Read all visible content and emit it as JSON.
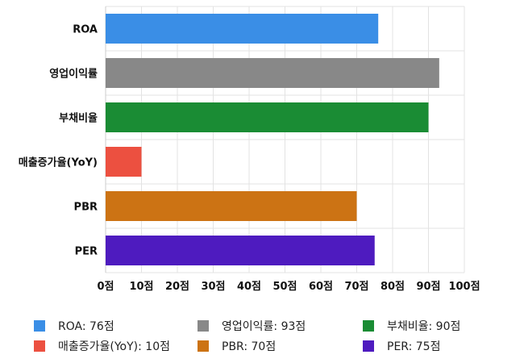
{
  "chart_data": {
    "type": "bar",
    "orientation": "horizontal",
    "categories": [
      "ROA",
      "영업이익률",
      "부채비율",
      "매출증가율(YoY)",
      "PBR",
      "PER"
    ],
    "values": [
      76,
      93,
      90,
      10,
      70,
      75
    ],
    "colors": [
      "#3a8ee6",
      "#888888",
      "#1a8c34",
      "#ec5040",
      "#cc7314",
      "#4e1bbf"
    ],
    "xlim": [
      0,
      100
    ],
    "xticks": [
      0,
      10,
      20,
      30,
      40,
      50,
      60,
      70,
      80,
      90,
      100
    ],
    "tick_suffix": "점",
    "grid": true,
    "legend_placement": "bottom",
    "legend": [
      "ROA: 76점",
      "영업이익률: 93점",
      "부채비율: 90점",
      "매출증가율(YoY): 10점",
      "PBR: 70점",
      "PER: 75점"
    ]
  }
}
